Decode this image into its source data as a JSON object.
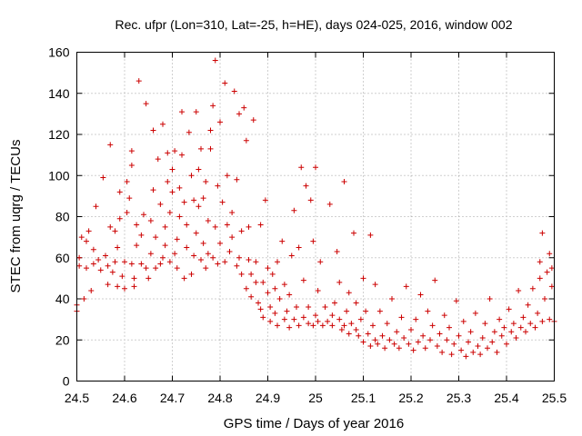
{
  "chart_data": {
    "type": "scatter",
    "title": "Rec. ufpr (Lon=310, Lat=-25, h=HE), days 024-025, 2016, window 002",
    "xlabel": "GPS time / Days of year 2016",
    "ylabel": "STEC from uqrg / TECUs",
    "xlim": [
      24.5,
      25.5
    ],
    "ylim": [
      0,
      160
    ],
    "xticks": [
      "24.5",
      "24.6",
      "24.7",
      "24.8",
      "24.9",
      "25",
      "25.1",
      "25.2",
      "25.3",
      "25.4",
      "25.5"
    ],
    "yticks": [
      "0",
      "20",
      "40",
      "60",
      "80",
      "100",
      "120",
      "140",
      "160"
    ],
    "grid": true,
    "marker": "plus",
    "color": "#cc0000",
    "series": [
      {
        "points": [
          [
            24.5,
            34
          ],
          [
            24.5,
            37
          ],
          [
            24.505,
            56
          ],
          [
            24.505,
            60
          ],
          [
            24.51,
            70
          ],
          [
            24.515,
            40
          ],
          [
            24.52,
            55
          ],
          [
            24.52,
            68
          ],
          [
            24.525,
            73
          ],
          [
            24.53,
            44
          ],
          [
            24.535,
            57
          ],
          [
            24.535,
            64
          ],
          [
            24.54,
            85
          ],
          [
            24.545,
            59
          ],
          [
            24.55,
            54
          ],
          [
            24.555,
            99
          ],
          [
            24.56,
            61
          ],
          [
            24.565,
            47
          ],
          [
            24.565,
            56
          ],
          [
            24.57,
            75
          ],
          [
            24.57,
            115
          ],
          [
            24.575,
            53
          ],
          [
            24.58,
            58
          ],
          [
            24.58,
            73
          ],
          [
            24.585,
            46
          ],
          [
            24.585,
            65
          ],
          [
            24.59,
            79
          ],
          [
            24.59,
            92
          ],
          [
            24.595,
            51
          ],
          [
            24.6,
            45
          ],
          [
            24.6,
            58
          ],
          [
            24.605,
            82
          ],
          [
            24.605,
            97
          ],
          [
            24.61,
            89
          ],
          [
            24.615,
            57
          ],
          [
            24.615,
            105
          ],
          [
            24.615,
            112
          ],
          [
            24.62,
            50
          ],
          [
            24.62,
            46
          ],
          [
            24.625,
            66
          ],
          [
            24.625,
            76
          ],
          [
            24.63,
            146
          ],
          [
            24.635,
            57
          ],
          [
            24.635,
            71
          ],
          [
            24.64,
            81
          ],
          [
            24.645,
            55
          ],
          [
            24.645,
            135
          ],
          [
            24.65,
            50
          ],
          [
            24.655,
            62
          ],
          [
            24.655,
            78
          ],
          [
            24.66,
            93
          ],
          [
            24.66,
            122
          ],
          [
            24.665,
            55
          ],
          [
            24.665,
            70
          ],
          [
            24.67,
            108
          ],
          [
            24.675,
            57
          ],
          [
            24.675,
            86
          ],
          [
            24.68,
            60
          ],
          [
            24.68,
            125
          ],
          [
            24.685,
            66
          ],
          [
            24.685,
            75
          ],
          [
            24.69,
            97
          ],
          [
            24.69,
            111
          ],
          [
            24.695,
            58
          ],
          [
            24.695,
            82
          ],
          [
            24.7,
            92
          ],
          [
            24.7,
            103
          ],
          [
            24.705,
            112
          ],
          [
            24.705,
            62
          ],
          [
            24.71,
            55
          ],
          [
            24.71,
            69
          ],
          [
            24.715,
            80
          ],
          [
            24.715,
            94
          ],
          [
            24.72,
            131
          ],
          [
            24.72,
            110
          ],
          [
            24.725,
            50
          ],
          [
            24.725,
            87
          ],
          [
            24.73,
            65
          ],
          [
            24.73,
            76
          ],
          [
            24.735,
            121
          ],
          [
            24.74,
            100
          ],
          [
            24.74,
            52
          ],
          [
            24.745,
            61
          ],
          [
            24.745,
            88
          ],
          [
            24.75,
            131
          ],
          [
            24.75,
            72
          ],
          [
            24.755,
            85
          ],
          [
            24.755,
            103
          ],
          [
            24.76,
            59
          ],
          [
            24.76,
            113
          ],
          [
            24.765,
            67
          ],
          [
            24.765,
            89
          ],
          [
            24.77,
            55
          ],
          [
            24.77,
            97
          ],
          [
            24.775,
            62
          ],
          [
            24.775,
            78
          ],
          [
            24.78,
            113
          ],
          [
            24.78,
            122
          ],
          [
            24.785,
            60
          ],
          [
            24.785,
            134
          ],
          [
            24.79,
            75
          ],
          [
            24.79,
            156
          ],
          [
            24.795,
            95
          ],
          [
            24.795,
            57
          ],
          [
            24.8,
            126
          ],
          [
            24.8,
            67
          ],
          [
            24.805,
            87
          ],
          [
            24.81,
            58
          ],
          [
            24.81,
            145
          ],
          [
            24.815,
            76
          ],
          [
            24.815,
            100
          ],
          [
            24.82,
            63
          ],
          [
            24.825,
            70
          ],
          [
            24.825,
            82
          ],
          [
            24.83,
            141
          ],
          [
            24.835,
            56
          ],
          [
            24.835,
            98
          ],
          [
            24.84,
            60
          ],
          [
            24.84,
            130
          ],
          [
            24.845,
            52
          ],
          [
            24.845,
            73
          ],
          [
            24.85,
            133
          ],
          [
            24.855,
            117
          ],
          [
            24.855,
            45
          ],
          [
            24.86,
            59
          ],
          [
            24.86,
            75
          ],
          [
            24.865,
            41
          ],
          [
            24.865,
            52
          ],
          [
            24.87,
            127
          ],
          [
            24.875,
            48
          ],
          [
            24.875,
            58
          ],
          [
            24.88,
            38
          ],
          [
            24.885,
            35
          ],
          [
            24.885,
            76
          ],
          [
            24.89,
            31
          ],
          [
            24.89,
            48
          ],
          [
            24.895,
            88
          ],
          [
            24.9,
            43
          ],
          [
            24.9,
            55
          ],
          [
            24.905,
            36
          ],
          [
            24.905,
            29
          ],
          [
            24.91,
            52
          ],
          [
            24.915,
            33
          ],
          [
            24.915,
            45
          ],
          [
            24.92,
            27
          ],
          [
            24.92,
            58
          ],
          [
            24.925,
            40
          ],
          [
            24.93,
            68
          ],
          [
            24.935,
            30
          ],
          [
            24.935,
            47
          ],
          [
            24.94,
            34
          ],
          [
            24.945,
            26
          ],
          [
            24.945,
            42
          ],
          [
            24.95,
            61
          ],
          [
            24.955,
            30
          ],
          [
            24.955,
            83
          ],
          [
            24.96,
            36
          ],
          [
            24.965,
            27
          ],
          [
            24.965,
            65
          ],
          [
            24.97,
            104
          ],
          [
            24.975,
            31
          ],
          [
            24.975,
            49
          ],
          [
            24.98,
            95
          ],
          [
            24.985,
            28
          ],
          [
            24.985,
            36
          ],
          [
            24.99,
            88
          ],
          [
            24.995,
            27
          ],
          [
            24.995,
            68
          ],
          [
            25.0,
            32
          ],
          [
            25.0,
            104
          ],
          [
            25.005,
            29
          ],
          [
            25.005,
            44
          ],
          [
            25.01,
            58
          ],
          [
            25.015,
            27
          ],
          [
            25.02,
            36
          ],
          [
            25.025,
            29
          ],
          [
            25.03,
            86
          ],
          [
            25.035,
            27
          ],
          [
            25.035,
            32
          ],
          [
            25.04,
            38
          ],
          [
            25.045,
            63
          ],
          [
            25.05,
            30
          ],
          [
            25.05,
            48
          ],
          [
            25.055,
            25
          ],
          [
            25.06,
            27
          ],
          [
            25.06,
            97
          ],
          [
            25.065,
            34
          ],
          [
            25.07,
            23
          ],
          [
            25.07,
            43
          ],
          [
            25.075,
            28
          ],
          [
            25.08,
            72
          ],
          [
            25.085,
            25
          ],
          [
            25.085,
            38
          ],
          [
            25.09,
            22
          ],
          [
            25.095,
            30
          ],
          [
            25.1,
            50
          ],
          [
            25.1,
            19
          ],
          [
            25.105,
            34
          ],
          [
            25.11,
            23
          ],
          [
            25.115,
            17
          ],
          [
            25.115,
            71
          ],
          [
            25.12,
            27
          ],
          [
            25.125,
            20
          ],
          [
            25.125,
            47
          ],
          [
            25.13,
            18
          ],
          [
            25.135,
            34
          ],
          [
            25.14,
            22
          ],
          [
            25.145,
            16
          ],
          [
            25.15,
            28
          ],
          [
            25.155,
            20
          ],
          [
            25.16,
            40
          ],
          [
            25.165,
            18
          ],
          [
            25.17,
            24
          ],
          [
            25.175,
            16
          ],
          [
            25.18,
            31
          ],
          [
            25.185,
            21
          ],
          [
            25.19,
            46
          ],
          [
            25.195,
            18
          ],
          [
            25.2,
            25
          ],
          [
            25.205,
            15
          ],
          [
            25.21,
            30
          ],
          [
            25.215,
            19
          ],
          [
            25.22,
            42
          ],
          [
            25.225,
            22
          ],
          [
            25.23,
            16
          ],
          [
            25.235,
            34
          ],
          [
            25.24,
            20
          ],
          [
            25.245,
            27
          ],
          [
            25.25,
            49
          ],
          [
            25.255,
            17
          ],
          [
            25.26,
            23
          ],
          [
            25.265,
            14
          ],
          [
            25.27,
            32
          ],
          [
            25.275,
            20
          ],
          [
            25.28,
            26
          ],
          [
            25.285,
            13
          ],
          [
            25.29,
            18
          ],
          [
            25.295,
            39
          ],
          [
            25.3,
            22
          ],
          [
            25.305,
            15
          ],
          [
            25.31,
            29
          ],
          [
            25.315,
            12
          ],
          [
            25.32,
            19
          ],
          [
            25.325,
            24
          ],
          [
            25.33,
            14
          ],
          [
            25.335,
            33
          ],
          [
            25.34,
            17
          ],
          [
            25.345,
            13
          ],
          [
            25.35,
            21
          ],
          [
            25.355,
            28
          ],
          [
            25.36,
            16
          ],
          [
            25.365,
            40
          ],
          [
            25.37,
            19
          ],
          [
            25.375,
            24
          ],
          [
            25.38,
            14
          ],
          [
            25.385,
            30
          ],
          [
            25.39,
            22
          ],
          [
            25.395,
            26
          ],
          [
            25.4,
            18
          ],
          [
            25.405,
            35
          ],
          [
            25.41,
            24
          ],
          [
            25.415,
            28
          ],
          [
            25.42,
            21
          ],
          [
            25.425,
            44
          ],
          [
            25.43,
            26
          ],
          [
            25.435,
            31
          ],
          [
            25.44,
            24
          ],
          [
            25.445,
            37
          ],
          [
            25.45,
            28
          ],
          [
            25.455,
            45
          ],
          [
            25.46,
            26
          ],
          [
            25.465,
            33
          ],
          [
            25.47,
            58
          ],
          [
            25.47,
            50
          ],
          [
            25.475,
            29
          ],
          [
            25.475,
            72
          ],
          [
            25.48,
            40
          ],
          [
            25.485,
            53
          ],
          [
            25.49,
            30
          ],
          [
            25.49,
            62
          ],
          [
            25.495,
            46
          ],
          [
            25.495,
            55
          ],
          [
            25.5,
            29
          ]
        ]
      }
    ]
  }
}
